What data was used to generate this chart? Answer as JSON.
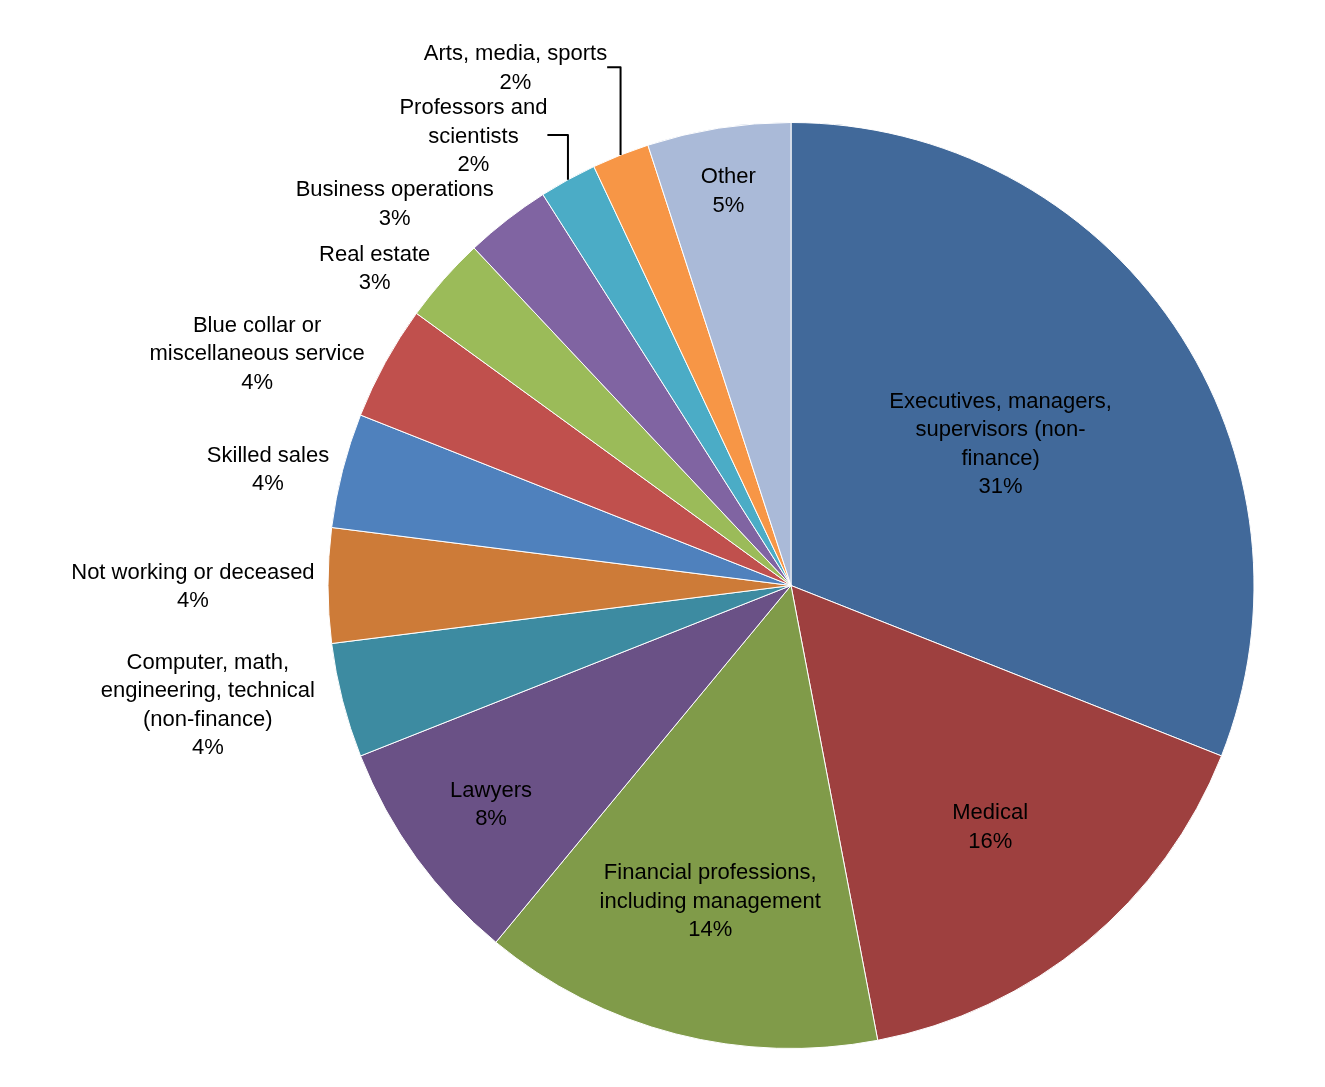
{
  "chart_data": {
    "type": "pie",
    "categories": [
      "Executives, managers, supervisors (non-finance)",
      "Medical",
      "Financial professions, including management",
      "Lawyers",
      "Computer, math, engineering, technical (non-finance)",
      "Not working or deceased",
      "Skilled sales",
      "Blue collar or miscellaneous service",
      "Real estate",
      "Business operations",
      "Professors and scientists",
      "Arts, media, sports",
      "Other"
    ],
    "values": [
      31,
      16,
      14,
      8,
      4,
      4,
      4,
      4,
      3,
      3,
      2,
      2,
      5
    ],
    "value_labels": [
      "31%",
      "16%",
      "14%",
      "8%",
      "4%",
      "4%",
      "4%",
      "4%",
      "3%",
      "3%",
      "2%",
      "2%",
      "5%"
    ],
    "colors": [
      "#41699a",
      "#9e403f",
      "#809b49",
      "#6a5186",
      "#3d8ba1",
      "#cd7b38",
      "#4f81bd",
      "#c0504d",
      "#9bbb59",
      "#8064a2",
      "#4bacc6",
      "#f79646",
      "#aabad8"
    ],
    "legend": false
  }
}
